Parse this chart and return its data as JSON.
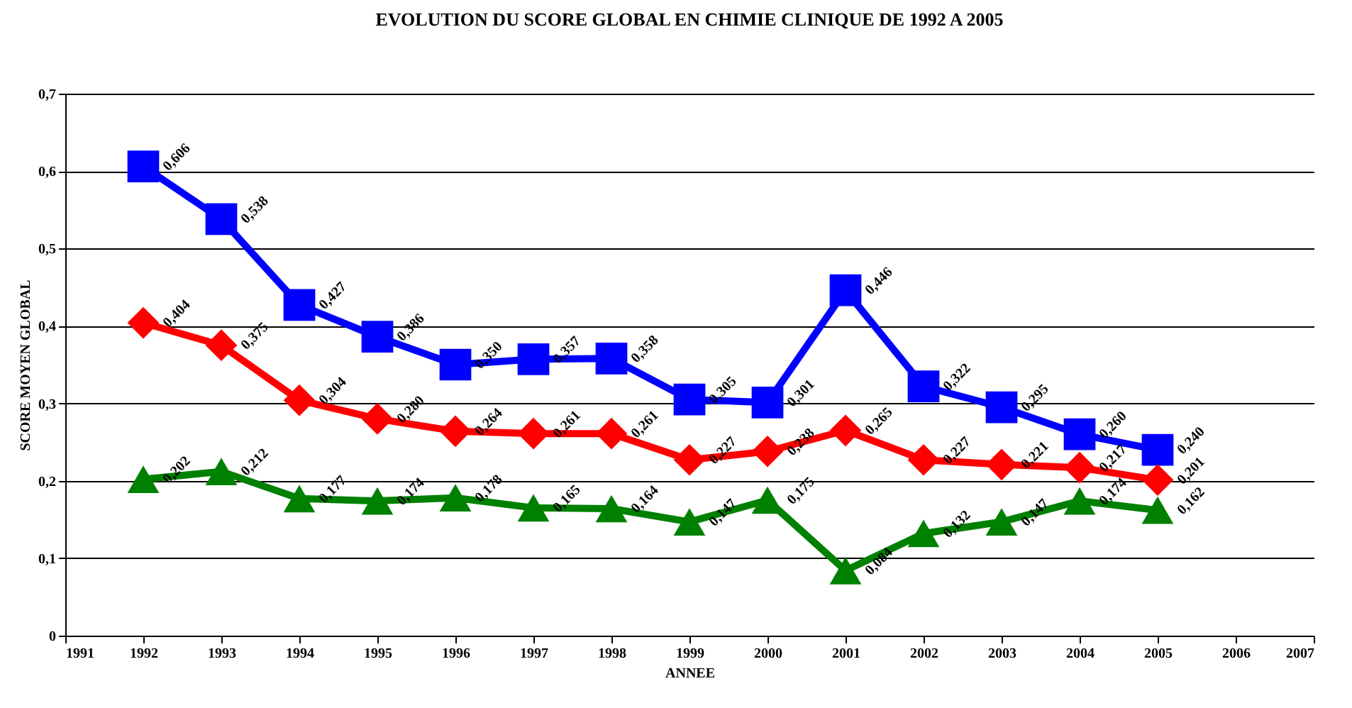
{
  "chart_data": {
    "type": "line",
    "title": "EVOLUTION DU SCORE GLOBAL EN CHIMIE CLINIQUE DE 1992 A 2005",
    "xlabel": "ANNEE",
    "ylabel": "SCORE MOYEN GLOBAL",
    "x": [
      1992,
      1993,
      1994,
      1995,
      1996,
      1997,
      1998,
      1999,
      2000,
      2001,
      2002,
      2003,
      2004,
      2005
    ],
    "series": [
      {
        "color": "#0000ff",
        "marker": "square",
        "values": [
          0.606,
          0.538,
          0.427,
          0.386,
          0.35,
          0.357,
          0.358,
          0.305,
          0.301,
          0.446,
          0.322,
          0.295,
          0.26,
          0.24
        ],
        "value_labels": [
          "0,606",
          "0,538",
          "0,427",
          "0,386",
          "0,350",
          "0,357",
          "0,358",
          "0,305",
          "0,301",
          "0,446",
          "0,322",
          "0,295",
          "0,260",
          "0,240"
        ]
      },
      {
        "color": "#ff0000",
        "marker": "diamond",
        "values": [
          0.404,
          0.375,
          0.304,
          0.28,
          0.264,
          0.261,
          0.261,
          0.227,
          0.238,
          0.265,
          0.227,
          0.221,
          0.217,
          0.201
        ],
        "value_labels": [
          "0,404",
          "0,375",
          "0,304",
          "0,280",
          "0,264",
          "0,261",
          "0,261",
          "0,227",
          "0,238",
          "0,265",
          "0,227",
          "0,221",
          "0,217",
          "0,201"
        ]
      },
      {
        "color": "#008000",
        "marker": "triangle",
        "values": [
          0.202,
          0.212,
          0.177,
          0.174,
          0.178,
          0.165,
          0.164,
          0.147,
          0.175,
          0.084,
          0.132,
          0.147,
          0.174,
          0.162
        ],
        "value_labels": [
          "0,202",
          "0,212",
          "0,177",
          "0,174",
          "0,178",
          "0,165",
          "0,164",
          "0,147",
          "0,175",
          "0,084",
          "0,132",
          "0,147",
          "0,174",
          "0,162"
        ]
      }
    ],
    "xlim": [
      1991,
      2007
    ],
    "xticks": [
      1991,
      1992,
      1993,
      1994,
      1995,
      1996,
      1997,
      1998,
      1999,
      2000,
      2001,
      2002,
      2003,
      2004,
      2005,
      2006,
      2007
    ],
    "ylim": [
      0,
      0.7
    ],
    "yticks": [
      {
        "value": 0,
        "label": "0"
      },
      {
        "value": 0.1,
        "label": "0,1"
      },
      {
        "value": 0.2,
        "label": "0,2"
      },
      {
        "value": 0.3,
        "label": "0,3"
      },
      {
        "value": 0.4,
        "label": "0,4"
      },
      {
        "value": 0.5,
        "label": "0,5"
      },
      {
        "value": 0.6,
        "label": "0,6"
      },
      {
        "value": 0.7,
        "label": "0,7"
      }
    ],
    "grid": "y",
    "line_style": "solid"
  }
}
